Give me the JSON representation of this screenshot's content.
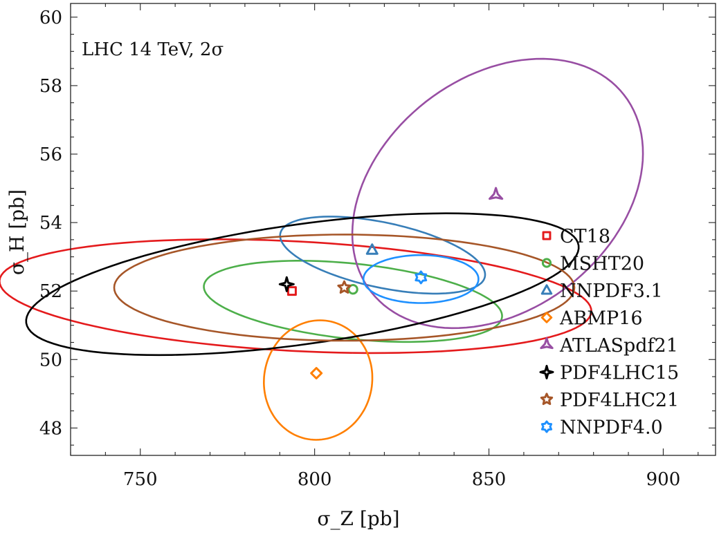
{
  "chart_data": {
    "type": "scatter",
    "title": "",
    "annotation": "LHC 14 TeV,  2σ",
    "xlabel": "σ_Z [pb]",
    "ylabel": "σ_H [pb]",
    "xlim": [
      730,
      915
    ],
    "ylim": [
      47.2,
      60.4
    ],
    "x_ticks": [
      750,
      800,
      850,
      900
    ],
    "y_ticks": [
      48,
      50,
      52,
      54,
      56,
      58,
      60
    ],
    "grid": false,
    "legend_position": "right",
    "series": [
      {
        "name": "CT18",
        "marker": "square",
        "color": "#e41a1c",
        "point": {
          "x": 793.5,
          "y": 52.0
        },
        "ellipse": {
          "cx": 794.5,
          "cy": 51.85,
          "rx": 85.0,
          "ry": 1.6,
          "angle": -3
        }
      },
      {
        "name": "MSHT20",
        "marker": "circle",
        "color": "#4daf4a",
        "point": {
          "x": 811.0,
          "y": 52.05
        },
        "ellipse": {
          "cx": 811.0,
          "cy": 51.7,
          "rx": 43.0,
          "ry": 1.1,
          "angle": -6
        }
      },
      {
        "name": "NNPDF3.1",
        "marker": "triangle",
        "color": "#377eb8",
        "point": {
          "x": 816.5,
          "y": 53.2
        },
        "ellipse": {
          "cx": 819.5,
          "cy": 53.05,
          "rx": 30.0,
          "ry": 0.95,
          "angle": -12
        }
      },
      {
        "name": "ABMP16",
        "marker": "diamond",
        "color": "#ff7f00",
        "point": {
          "x": 800.5,
          "y": 49.6
        },
        "ellipse": {
          "cx": 801.0,
          "cy": 49.4,
          "rx": 15.5,
          "ry": 1.75,
          "angle": -10
        }
      },
      {
        "name": "ATLASpdf21",
        "marker": "tri-star",
        "color": "#984ea3",
        "point": {
          "x": 852.0,
          "y": 54.8
        },
        "ellipse": {
          "cx": 852.5,
          "cy": 54.85,
          "rx": 46.0,
          "ry": 3.4,
          "angle": 38
        }
      },
      {
        "name": "PDF4LHC15",
        "marker": "four-star",
        "color": "#000000",
        "point": {
          "x": 792.0,
          "y": 52.2
        },
        "ellipse": {
          "cx": 796.5,
          "cy": 52.2,
          "rx": 80.0,
          "ry": 1.75,
          "angle": 8
        }
      },
      {
        "name": "PDF4LHC21",
        "marker": "star",
        "color": "#a65628",
        "point": {
          "x": 808.5,
          "y": 52.1
        },
        "ellipse": {
          "cx": 808.5,
          "cy": 52.1,
          "rx": 66.0,
          "ry": 1.55,
          "angle": 0
        }
      },
      {
        "name": "NNPDF4.0",
        "marker": "hexagram",
        "color": "#1e90ff",
        "point": {
          "x": 830.5,
          "y": 52.4
        },
        "ellipse": {
          "cx": 830.5,
          "cy": 52.35,
          "rx": 16.5,
          "ry": 0.7,
          "angle": 0
        }
      }
    ]
  }
}
